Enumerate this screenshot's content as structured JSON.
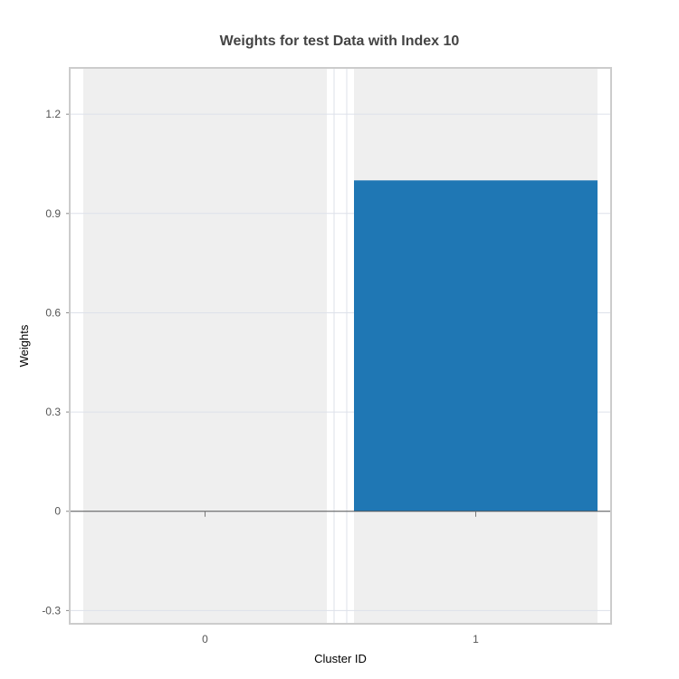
{
  "chart_data": {
    "type": "bar",
    "title": "Weights for test Data with Index 10",
    "xlabel": "Cluster ID",
    "ylabel": "Weights",
    "categories": [
      "0",
      "1"
    ],
    "values": [
      0,
      1.0
    ],
    "ylim": [
      -0.34,
      1.34
    ],
    "yticks": [
      -0.3,
      0,
      0.3,
      0.6,
      0.9,
      1.2
    ],
    "ytick_labels": [
      "-0.3",
      "0",
      "0.3",
      "0.6",
      "0.9",
      "1.2"
    ],
    "grid": true,
    "colors": {
      "bar": "#1f77b4",
      "band": "#efefef",
      "grid": "#dde1ea",
      "frame": "#cccccc",
      "zero_line": "#555555"
    }
  }
}
